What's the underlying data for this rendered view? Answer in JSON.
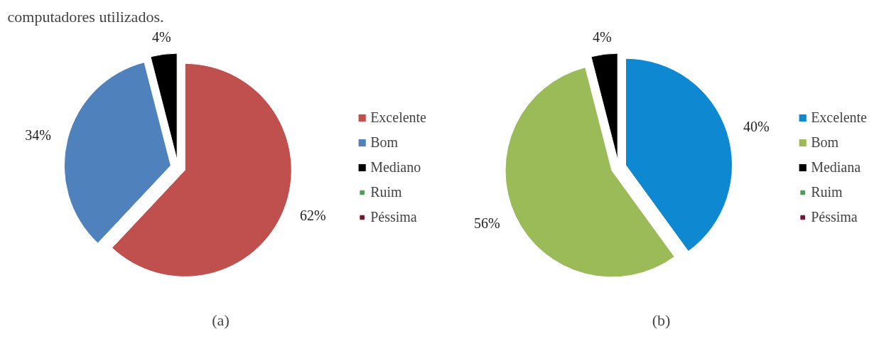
{
  "chart_data": [
    {
      "type": "pie",
      "title": "(a)",
      "annotations": [
        "computadores utilizados."
      ],
      "legend": "right",
      "categories": [
        "Excelente",
        "Bom",
        "Mediano",
        "Ruim",
        "Péssima"
      ],
      "values": [
        62,
        34,
        4,
        0,
        0
      ],
      "value_labels": [
        "62%",
        "34%",
        "4%",
        null,
        null
      ],
      "colors": [
        "#c0504d",
        "#4f81bd",
        "#000000",
        "#4e9a5a",
        "#6b1a2e"
      ]
    },
    {
      "type": "pie",
      "title": "(b)",
      "legend": "right",
      "categories": [
        "Excelente",
        "Bom",
        "Mediana",
        "Ruim",
        "Péssima"
      ],
      "values": [
        40,
        56,
        4,
        0,
        0
      ],
      "value_labels": [
        "40%",
        "56%",
        "4%",
        null,
        null
      ],
      "colors": [
        "#0e88d0",
        "#9bbb59",
        "#000000",
        "#4e9a5a",
        "#6b1a2e"
      ]
    }
  ]
}
